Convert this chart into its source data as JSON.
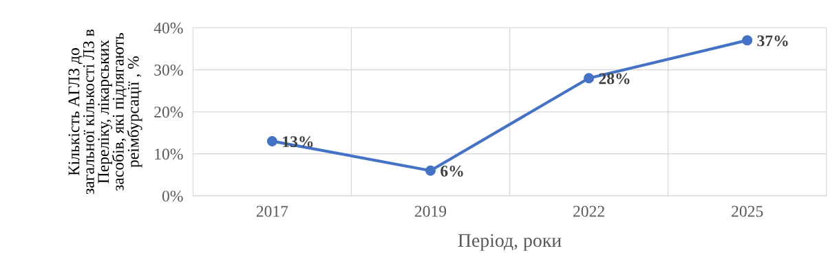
{
  "chart_data": {
    "type": "line",
    "categories": [
      "2017",
      "2019",
      "2022",
      "2025"
    ],
    "series": [
      {
        "color": "#4472c4",
        "values": [
          13,
          6,
          28,
          37
        ]
      }
    ],
    "xlabel": "Період, роки",
    "ylabel": "Кількість АГЛЗ до\nзагальної кількості ЛЗ в\nПереліку, лікарських\nзасобів, які підлягають\nреімбурсації , %",
    "ylim": [
      0,
      40
    ],
    "yticks": [
      {
        "value": 0,
        "label": "0%"
      },
      {
        "value": 10,
        "label": "10%"
      },
      {
        "value": 20,
        "label": "20%"
      },
      {
        "value": 30,
        "label": "30%"
      },
      {
        "value": 40,
        "label": "40%"
      }
    ],
    "value_labels": [
      "13%",
      "6%",
      "28%",
      "37%"
    ],
    "grid": true,
    "marker": "circle",
    "line_style": "solid",
    "legend": false
  }
}
